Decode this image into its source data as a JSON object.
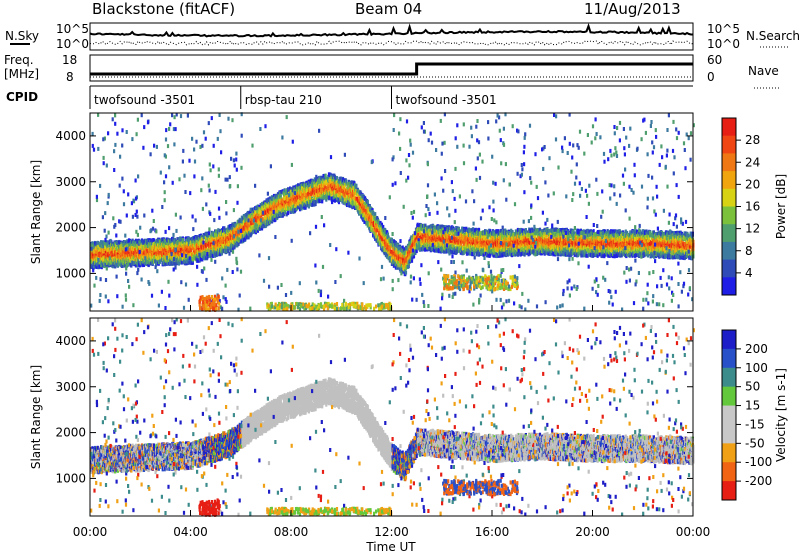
{
  "header": {
    "station": "Blackstone (fitACF)",
    "beam": "Beam 04",
    "date": "11/Aug/2013"
  },
  "summary_panel": {
    "nsky_label": "N.Sky",
    "nsearch_label": "N.Search",
    "noise_ticks_left": [
      "10^5",
      "10^0"
    ],
    "noise_ticks_right": [
      "10^5",
      "10^0"
    ],
    "freq_label_line1": "Freq.",
    "freq_label_line2": "[MHz]",
    "freq_ticks": [
      "18",
      "8"
    ],
    "nave_label": "Nave",
    "nave_ticks": [
      "60",
      "0"
    ],
    "cpid_label": "CPID",
    "cpid_segments": [
      {
        "name": "twofsound -3501",
        "start_hour": 0,
        "end_hour": 6
      },
      {
        "name": "rbsp-tau 210",
        "start_hour": 6,
        "end_hour": 12
      },
      {
        "name": "twofsound -3501",
        "start_hour": 12,
        "end_hour": 24
      }
    ]
  },
  "chart_data": [
    {
      "type": "heatmap",
      "title": "",
      "xlabel": "",
      "ylabel": "Slant Range [km]",
      "xlim": [
        0,
        24
      ],
      "ylim": [
        180,
        4500
      ],
      "yticks": [
        "1000",
        "2000",
        "3000",
        "4000"
      ],
      "colorbar": {
        "label": "Power [dB]",
        "ticks": [
          "4",
          "8",
          "12",
          "16",
          "20",
          "24",
          "28"
        ],
        "colors": [
          "#1e1ee6",
          "#2f4bb8",
          "#3c7aa0",
          "#4f9e6e",
          "#7cc13c",
          "#d8d214",
          "#f0a50f",
          "#f07814",
          "#f04614",
          "#e61e14"
        ]
      },
      "echo_band_main_km": [
        [
          0,
          1400
        ],
        [
          2,
          1450
        ],
        [
          4,
          1500
        ],
        [
          5.5,
          1750
        ],
        [
          6.5,
          2150
        ],
        [
          7.5,
          2500
        ],
        [
          8.5,
          2700
        ],
        [
          9.5,
          2900
        ],
        [
          10.5,
          2700
        ],
        [
          11,
          2300
        ],
        [
          11.5,
          1850
        ],
        [
          12,
          1450
        ],
        [
          12.5,
          1250
        ],
        [
          13,
          1800
        ],
        [
          14,
          1750
        ],
        [
          16,
          1650
        ],
        [
          18,
          1700
        ],
        [
          20,
          1650
        ],
        [
          22,
          1650
        ],
        [
          24,
          1600
        ]
      ]
    },
    {
      "type": "heatmap",
      "title": "",
      "xlabel": "Time UT",
      "ylabel": "Slant Range [km]",
      "xlim": [
        0,
        24
      ],
      "ylim": [
        180,
        4500
      ],
      "xticks": [
        "00:00",
        "04:00",
        "08:00",
        "12:00",
        "16:00",
        "20:00",
        "00:00"
      ],
      "yticks": [
        "1000",
        "2000",
        "3000",
        "4000"
      ],
      "colorbar": {
        "label": "Velocity [m s-1]",
        "ticks": [
          "200",
          "100",
          "50",
          "15",
          "-15",
          "-50",
          "-100",
          "-200"
        ],
        "colors": [
          "#1e1ec8",
          "#2850c8",
          "#3c8c8c",
          "#64c83c",
          "#c8c8c8",
          "#c8c8c8",
          "#f0a014",
          "#f06414",
          "#e61e14"
        ]
      },
      "ground_scatter_color": "#c0c0c0"
    }
  ]
}
